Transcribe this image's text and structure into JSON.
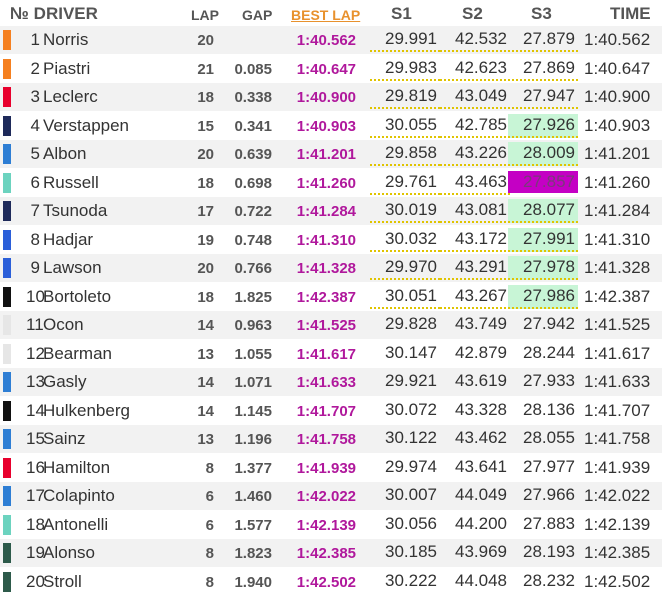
{
  "header": {
    "no": "№ DRIVER",
    "lap": "LAP",
    "gap": "GAP",
    "best": "BEST LAP",
    "s1": "S1",
    "s2": "S2",
    "s3": "S3",
    "time": "TIME"
  },
  "colors": {
    "best_lap": "#b0189c",
    "best_header": "#e8912d",
    "sector_green": "#c8f5d6",
    "sector_purple": "#c400c4",
    "dotted_underline": "#e0c400"
  },
  "rows": [
    {
      "pos": "1",
      "driver": "Norris",
      "lap": "20",
      "gap": "",
      "best": "1:40.562",
      "s1": "29.991",
      "s2": "42.532",
      "s3": "27.879",
      "time": "1:40.562",
      "team_color": "#f58020",
      "s1_dot": true,
      "s2_dot": true,
      "s3_dot": true,
      "s3_hl": ""
    },
    {
      "pos": "2",
      "driver": "Piastri",
      "lap": "21",
      "gap": "0.085",
      "best": "1:40.647",
      "s1": "29.983",
      "s2": "42.623",
      "s3": "27.869",
      "time": "1:40.647",
      "team_color": "#f58020",
      "s1_dot": true,
      "s2_dot": true,
      "s3_dot": true,
      "s3_hl": ""
    },
    {
      "pos": "3",
      "driver": "Leclerc",
      "lap": "18",
      "gap": "0.338",
      "best": "1:40.900",
      "s1": "29.819",
      "s2": "43.049",
      "s3": "27.947",
      "time": "1:40.900",
      "team_color": "#e8002d",
      "s1_dot": true,
      "s2_dot": true,
      "s3_dot": true,
      "s3_hl": ""
    },
    {
      "pos": "4",
      "driver": "Verstappen",
      "lap": "15",
      "gap": "0.341",
      "best": "1:40.903",
      "s1": "30.055",
      "s2": "42.785",
      "s3": "27.926",
      "time": "1:40.903",
      "team_color": "#1e2a5a",
      "s1_dot": true,
      "s2_dot": true,
      "s3_dot": true,
      "s3_hl": "green"
    },
    {
      "pos": "5",
      "driver": "Albon",
      "lap": "20",
      "gap": "0.639",
      "best": "1:41.201",
      "s1": "29.858",
      "s2": "43.226",
      "s3": "28.009",
      "time": "1:41.201",
      "team_color": "#2e7ed4",
      "s1_dot": true,
      "s2_dot": true,
      "s3_dot": true,
      "s3_hl": "green"
    },
    {
      "pos": "6",
      "driver": "Russell",
      "lap": "18",
      "gap": "0.698",
      "best": "1:41.260",
      "s1": "29.761",
      "s2": "43.463",
      "s3": "27.857",
      "time": "1:41.260",
      "team_color": "#6cd3bf",
      "s1_dot": true,
      "s2_dot": true,
      "s3_dot": false,
      "s3_hl": "purple"
    },
    {
      "pos": "7",
      "driver": "Tsunoda",
      "lap": "17",
      "gap": "0.722",
      "best": "1:41.284",
      "s1": "30.019",
      "s2": "43.081",
      "s3": "28.077",
      "time": "1:41.284",
      "team_color": "#1e2a5a",
      "s1_dot": true,
      "s2_dot": true,
      "s3_dot": true,
      "s3_hl": "green"
    },
    {
      "pos": "8",
      "driver": "Hadjar",
      "lap": "19",
      "gap": "0.748",
      "best": "1:41.310",
      "s1": "30.032",
      "s2": "43.172",
      "s3": "27.991",
      "time": "1:41.310",
      "team_color": "#2b5fd9",
      "s1_dot": true,
      "s2_dot": true,
      "s3_dot": true,
      "s3_hl": "green"
    },
    {
      "pos": "9",
      "driver": "Lawson",
      "lap": "20",
      "gap": "0.766",
      "best": "1:41.328",
      "s1": "29.970",
      "s2": "43.291",
      "s3": "27.978",
      "time": "1:41.328",
      "team_color": "#2b5fd9",
      "s1_dot": true,
      "s2_dot": true,
      "s3_dot": true,
      "s3_hl": "green"
    },
    {
      "pos": "10",
      "driver": "Bortoleto",
      "lap": "18",
      "gap": "1.825",
      "best": "1:42.387",
      "s1": "30.051",
      "s2": "43.267",
      "s3": "27.986",
      "time": "1:42.387",
      "team_color": "#111111",
      "s1_dot": true,
      "s2_dot": true,
      "s3_dot": true,
      "s3_hl": "green"
    },
    {
      "pos": "11",
      "driver": "Ocon",
      "lap": "14",
      "gap": "0.963",
      "best": "1:41.525",
      "s1": "29.828",
      "s2": "43.749",
      "s3": "27.942",
      "time": "1:41.525",
      "team_color": "#e6e6e6",
      "s1_dot": false,
      "s2_dot": false,
      "s3_dot": false,
      "s3_hl": ""
    },
    {
      "pos": "12",
      "driver": "Bearman",
      "lap": "13",
      "gap": "1.055",
      "best": "1:41.617",
      "s1": "30.147",
      "s2": "42.879",
      "s3": "28.244",
      "time": "1:41.617",
      "team_color": "#e6e6e6",
      "s1_dot": false,
      "s2_dot": false,
      "s3_dot": false,
      "s3_hl": ""
    },
    {
      "pos": "13",
      "driver": "Gasly",
      "lap": "14",
      "gap": "1.071",
      "best": "1:41.633",
      "s1": "29.921",
      "s2": "43.619",
      "s3": "27.933",
      "time": "1:41.633",
      "team_color": "#2e7ed4",
      "s1_dot": false,
      "s2_dot": false,
      "s3_dot": false,
      "s3_hl": ""
    },
    {
      "pos": "14",
      "driver": "Hulkenberg",
      "lap": "14",
      "gap": "1.145",
      "best": "1:41.707",
      "s1": "30.072",
      "s2": "43.328",
      "s3": "28.136",
      "time": "1:41.707",
      "team_color": "#111111",
      "s1_dot": false,
      "s2_dot": false,
      "s3_dot": false,
      "s3_hl": ""
    },
    {
      "pos": "15",
      "driver": "Sainz",
      "lap": "13",
      "gap": "1.196",
      "best": "1:41.758",
      "s1": "30.122",
      "s2": "43.462",
      "s3": "28.055",
      "time": "1:41.758",
      "team_color": "#2e7ed4",
      "s1_dot": false,
      "s2_dot": false,
      "s3_dot": false,
      "s3_hl": ""
    },
    {
      "pos": "16",
      "driver": "Hamilton",
      "lap": "8",
      "gap": "1.377",
      "best": "1:41.939",
      "s1": "29.974",
      "s2": "43.641",
      "s3": "27.977",
      "time": "1:41.939",
      "team_color": "#e8002d",
      "s1_dot": false,
      "s2_dot": false,
      "s3_dot": false,
      "s3_hl": ""
    },
    {
      "pos": "17",
      "driver": "Colapinto",
      "lap": "6",
      "gap": "1.460",
      "best": "1:42.022",
      "s1": "30.007",
      "s2": "44.049",
      "s3": "27.966",
      "time": "1:42.022",
      "team_color": "#2e7ed4",
      "s1_dot": false,
      "s2_dot": false,
      "s3_dot": false,
      "s3_hl": ""
    },
    {
      "pos": "18",
      "driver": "Antonelli",
      "lap": "6",
      "gap": "1.577",
      "best": "1:42.139",
      "s1": "30.056",
      "s2": "44.200",
      "s3": "27.883",
      "time": "1:42.139",
      "team_color": "#6cd3bf",
      "s1_dot": false,
      "s2_dot": false,
      "s3_dot": false,
      "s3_hl": ""
    },
    {
      "pos": "19",
      "driver": "Alonso",
      "lap": "8",
      "gap": "1.823",
      "best": "1:42.385",
      "s1": "30.185",
      "s2": "43.969",
      "s3": "28.193",
      "time": "1:42.385",
      "team_color": "#2d5a4a",
      "s1_dot": false,
      "s2_dot": false,
      "s3_dot": false,
      "s3_hl": ""
    },
    {
      "pos": "20",
      "driver": "Stroll",
      "lap": "8",
      "gap": "1.940",
      "best": "1:42.502",
      "s1": "30.222",
      "s2": "44.048",
      "s3": "28.232",
      "time": "1:42.502",
      "team_color": "#2d5a4a",
      "s1_dot": false,
      "s2_dot": false,
      "s3_dot": false,
      "s3_hl": ""
    }
  ]
}
